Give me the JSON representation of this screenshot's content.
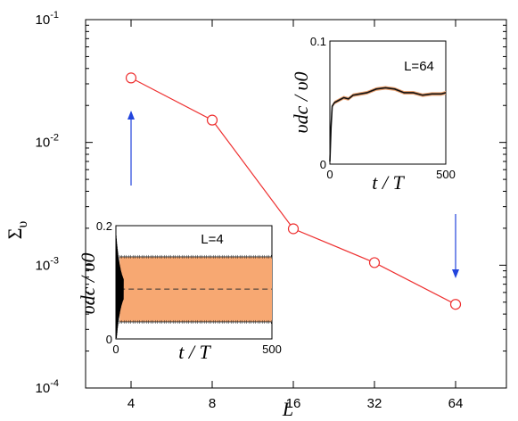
{
  "chart_data": [
    {
      "type": "line",
      "x": [
        4,
        8,
        16,
        32,
        64
      ],
      "y": [
        0.0335,
        0.0152,
        0.00198,
        0.00105,
        0.00048
      ],
      "xscale": "log2",
      "yscale": "log",
      "xticks": [
        "4",
        "8",
        "16",
        "32",
        "64"
      ],
      "yticks": [
        "10-1",
        "10-2",
        "10-3",
        "10-4"
      ],
      "xlabel": "L",
      "ylabel": "Σ",
      "ylabel_sub": "υ",
      "ylim": [
        0.0001,
        0.1
      ],
      "series_color": "#ee3030",
      "marker": "open-circle",
      "annotations": [
        {
          "kind": "arrow",
          "direction": "up",
          "color": "#2244dd",
          "at_x": 4
        },
        {
          "kind": "arrow",
          "direction": "down",
          "color": "#2244dd",
          "at_x": 64
        }
      ]
    },
    {
      "type": "line",
      "title": "L=64",
      "xlabel": "t / T",
      "ylabel": "υdc / υ0",
      "xlim": [
        0,
        500
      ],
      "ylim": [
        0,
        0.1
      ],
      "xticks": [
        "0",
        "500"
      ],
      "yticks": [
        "0",
        "0.1"
      ],
      "t": [
        0,
        5,
        10,
        20,
        40,
        60,
        80,
        100,
        130,
        160,
        200,
        240,
        280,
        320,
        360,
        400,
        440,
        480,
        500
      ],
      "values": [
        0.002,
        0.03,
        0.047,
        0.05,
        0.052,
        0.054,
        0.053,
        0.056,
        0.057,
        0.058,
        0.061,
        0.062,
        0.061,
        0.058,
        0.058,
        0.056,
        0.057,
        0.057,
        0.058
      ],
      "band_color": "#e8a070"
    },
    {
      "type": "area",
      "title": "L=4",
      "xlabel": "t / T",
      "ylabel": "υdc / υ0",
      "xlim": [
        0,
        500
      ],
      "ylim": [
        0,
        0.2
      ],
      "xticks": [
        "0",
        "500"
      ],
      "yticks": [
        "0",
        "0.2"
      ],
      "band_low": 0.03,
      "band_high": 0.145,
      "mean": 0.088,
      "band_color": "#f7a872"
    }
  ]
}
